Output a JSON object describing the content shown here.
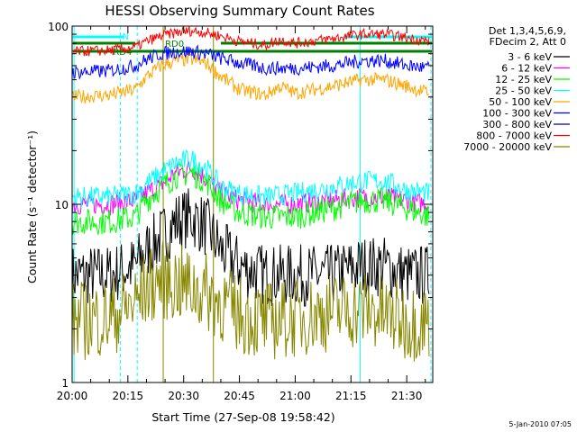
{
  "chart_data": {
    "type": "line",
    "title": "HESSI Observing Summary Count Rates",
    "xlabel": "Start Time (27-Sep-08 19:58:42)",
    "ylabel": "Count Rate (s⁻¹ detector⁻¹)",
    "y_scale": "log",
    "ylim": [
      1,
      100
    ],
    "xlim_minutes_after_20_00": [
      0,
      97
    ],
    "x_tick_labels": [
      "20:00",
      "20:15",
      "20:30",
      "20:45",
      "21:00",
      "21:15",
      "21:30"
    ],
    "x_tick_minutes": [
      0,
      15,
      30,
      45,
      60,
      75,
      90
    ],
    "y_tick_labels": [
      "1",
      "10",
      "100"
    ],
    "y_tick_values": [
      1,
      10,
      100
    ],
    "legend_header": [
      "Det 1,3,4,5,6,9,",
      "FDecim 2, Att 0"
    ],
    "legend_placement": "right, outside plot",
    "series": [
      {
        "name": "3 - 6 keV",
        "color": "#000000",
        "x": [
          0,
          10,
          17,
          20,
          24,
          28,
          32,
          36,
          40,
          45,
          52,
          60,
          70,
          78,
          84,
          90,
          96
        ],
        "values": [
          4,
          4,
          4.5,
          5.5,
          6.5,
          8,
          8.5,
          7.5,
          5.5,
          4.5,
          4,
          4,
          4,
          4.5,
          4.5,
          4,
          4
        ]
      },
      {
        "name": "6 - 12 keV",
        "color": "#ff00ff",
        "x": [
          0,
          10,
          17,
          20,
          24,
          28,
          32,
          36,
          40,
          45,
          52,
          60,
          70,
          78,
          84,
          90,
          96
        ],
        "values": [
          10,
          10,
          10.5,
          11.5,
          13,
          15,
          16,
          14,
          11.5,
          10.5,
          10,
          10,
          10.5,
          11,
          11,
          10.5,
          10
        ]
      },
      {
        "name": "12 - 25 keV",
        "color": "#00ff00",
        "x": [
          0,
          10,
          17,
          20,
          24,
          28,
          32,
          36,
          40,
          45,
          52,
          60,
          70,
          78,
          84,
          90,
          96
        ],
        "values": [
          8,
          8,
          8.5,
          10.5,
          12.5,
          14.5,
          15,
          13.5,
          10.5,
          9,
          8.5,
          8.5,
          9.5,
          10.5,
          10.5,
          9.5,
          8.5
        ]
      },
      {
        "name": "25 - 50 keV",
        "color": "#00ffff",
        "x": [
          0,
          10,
          17,
          20,
          24,
          28,
          32,
          36,
          40,
          45,
          52,
          60,
          70,
          78,
          84,
          90,
          96
        ],
        "values": [
          11,
          11,
          11.5,
          13,
          15,
          17,
          18,
          16,
          12.5,
          11.5,
          11,
          11.5,
          12.5,
          13.5,
          13.5,
          12,
          11.5
        ]
      },
      {
        "name": "50 - 100 keV",
        "color": "#ffa500",
        "x": [
          0,
          10,
          17,
          20,
          24,
          28,
          32,
          36,
          40,
          45,
          52,
          56,
          60,
          70,
          78,
          84,
          90,
          96
        ],
        "values": [
          40,
          41,
          44,
          52,
          60,
          64,
          65,
          62,
          52,
          44,
          41,
          46,
          42,
          46,
          50,
          50,
          46,
          42
        ]
      },
      {
        "name": "100 - 300 keV",
        "color": "#0000ff",
        "x": [
          0,
          10,
          17,
          20,
          24,
          28,
          32,
          36,
          40,
          45,
          52,
          60,
          70,
          78,
          84,
          90,
          96
        ],
        "values": [
          55,
          56,
          60,
          65,
          70,
          72,
          72,
          70,
          66,
          62,
          58,
          58,
          60,
          64,
          64,
          60,
          58
        ]
      },
      {
        "name": "300 - 800 keV",
        "color": "#0000aa",
        "x": [
          0,
          96
        ],
        "values": [
          null,
          null
        ]
      },
      {
        "name": "800 - 7000 keV",
        "color": "#ff0000",
        "x": [
          0,
          10,
          17,
          20,
          24,
          28,
          32,
          36,
          40,
          45,
          52,
          56,
          60,
          70,
          78,
          84,
          90,
          96
        ],
        "values": [
          72,
          73,
          76,
          82,
          88,
          92,
          94,
          92,
          88,
          82,
          78,
          84,
          80,
          85,
          90,
          90,
          86,
          82
        ]
      },
      {
        "name": "7000 - 20000 keV",
        "color": "#888800",
        "x": [
          0,
          10,
          17,
          20,
          24,
          28,
          32,
          36,
          40,
          45,
          52,
          60,
          70,
          78,
          84,
          90,
          96
        ],
        "values": [
          2.2,
          2.3,
          2.8,
          3.4,
          3.8,
          3.6,
          3.4,
          3.2,
          2.8,
          2.4,
          2.2,
          2.3,
          2.5,
          2.6,
          2.4,
          2.2,
          2.2
        ]
      }
    ],
    "annotations": [
      {
        "text": "N",
        "color": "#00ffff"
      },
      {
        "text": "RD0",
        "color": "#008000"
      },
      {
        "text": "RD4",
        "color": "#008000"
      }
    ]
  },
  "footer_date": "5-Jan-2010 07:05"
}
